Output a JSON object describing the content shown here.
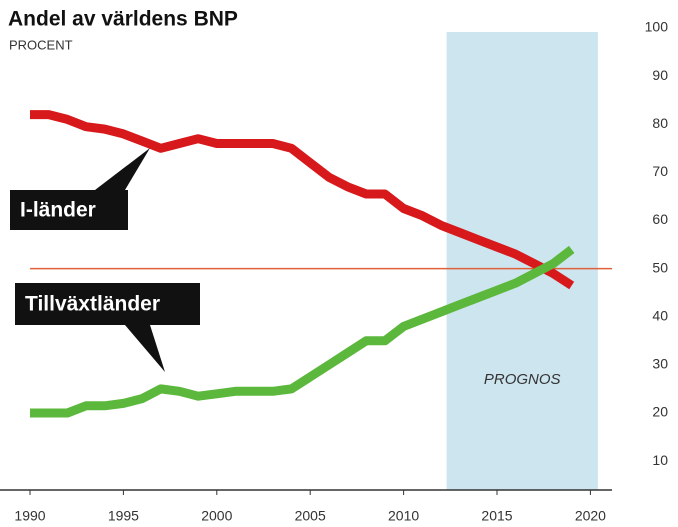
{
  "chart_data": {
    "type": "line",
    "title": "Andel av världens BNP",
    "subtitle": "PROCENT",
    "x": [
      1990,
      1991,
      1992,
      1993,
      1994,
      1995,
      1996,
      1997,
      1998,
      1999,
      2000,
      2001,
      2002,
      2003,
      2004,
      2005,
      2006,
      2007,
      2008,
      2009,
      2010,
      2011,
      2012,
      2013,
      2014,
      2015,
      2016,
      2017,
      2018,
      2019
    ],
    "series": [
      {
        "name": "I-länder",
        "color": "#d7191c",
        "values": [
          82,
          82,
          81,
          79.5,
          79,
          78,
          76.5,
          75,
          76,
          77,
          76,
          76,
          76,
          76,
          75,
          72,
          69,
          67,
          65.5,
          65.5,
          62.5,
          61,
          59,
          57.5,
          56,
          54.5,
          53,
          51,
          49,
          46.5
        ]
      },
      {
        "name": "Tillväxtländer",
        "color": "#5cb83c",
        "values": [
          20,
          20,
          20,
          21.5,
          21.5,
          22,
          23,
          25,
          24.5,
          23.5,
          24,
          24.5,
          24.5,
          24.5,
          25,
          27.5,
          30,
          32.5,
          35,
          35,
          38,
          39.5,
          41,
          42.5,
          44,
          45.5,
          47,
          49,
          51,
          54
        ]
      }
    ],
    "reference_line": {
      "value": 50,
      "color": "#e0603a"
    },
    "forecast_band": {
      "x0": 2012.3,
      "x1": 2020.4,
      "label": "PROGNOS",
      "color": "#cde5ef"
    },
    "xlim": [
      1990,
      2022
    ],
    "xticks": [
      1990,
      1995,
      2000,
      2005,
      2010,
      2015,
      2020
    ],
    "ylim": [
      4,
      100
    ],
    "yticks": [
      10,
      20,
      30,
      40,
      50,
      60,
      70,
      80,
      90,
      100
    ]
  }
}
